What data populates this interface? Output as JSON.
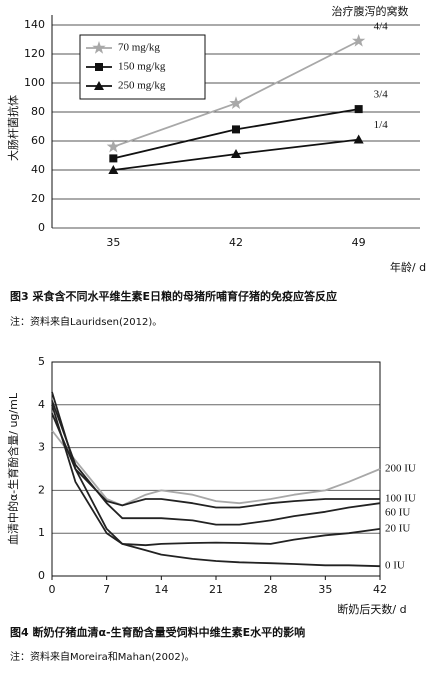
{
  "chart_data": [
    {
      "type": "line",
      "annotation": "治疗腹泻的窝数",
      "y_label": "大肠杆菌抗体",
      "x_label": "年龄/ d",
      "caption": "图3 采食含不同水平维生素E日粮的母猪所哺育仔猪的免疫应答反应",
      "note": "注：资料来自Lauridsen(2012)。",
      "categories": [
        "35",
        "42",
        "49"
      ],
      "series": [
        {
          "name": "70 mg/kg",
          "color": "#a8a8a8",
          "marker": "star",
          "values": [
            56,
            86,
            129
          ],
          "end_label": "4/4"
        },
        {
          "name": "150 mg/kg",
          "color": "#111111",
          "marker": "square",
          "values": [
            48,
            68,
            82
          ],
          "end_label": "3/4"
        },
        {
          "name": "250 mg/kg",
          "color": "#111111",
          "marker": "triangle",
          "values": [
            40,
            51,
            61
          ],
          "end_label": "1/4"
        }
      ],
      "ylim": [
        0,
        140
      ],
      "yticks": [
        0,
        20,
        40,
        60,
        80,
        100,
        120,
        140
      ],
      "grid": true,
      "legend": "upper left"
    },
    {
      "type": "line",
      "y_label": "血清中的α-生育酚含量/ ug/mL",
      "x_label": "断奶后天数/ d",
      "caption": "图4 断奶仔猪血清α-生育酚含量受饲料中维生素E水平的影响",
      "note": "注：资料来自Moreira和Mahan(2002)。",
      "x": [
        0,
        3,
        7,
        9,
        12,
        14,
        18,
        21,
        24,
        28,
        31,
        35,
        38,
        42
      ],
      "series": [
        {
          "name": "200 IU",
          "color": "#a8a8a8",
          "values": [
            3.4,
            2.7,
            1.8,
            1.65,
            1.9,
            2.0,
            1.9,
            1.75,
            1.7,
            1.8,
            1.9,
            2.0,
            2.2,
            2.5
          ]
        },
        {
          "name": "100 IU",
          "color": "#222222",
          "values": [
            3.8,
            2.5,
            1.75,
            1.65,
            1.8,
            1.8,
            1.7,
            1.6,
            1.6,
            1.7,
            1.75,
            1.8,
            1.8,
            1.8
          ]
        },
        {
          "name": "60 IU",
          "color": "#222222",
          "values": [
            4.1,
            2.6,
            1.7,
            1.35,
            1.35,
            1.35,
            1.3,
            1.2,
            1.2,
            1.3,
            1.4,
            1.5,
            1.6,
            1.7
          ]
        },
        {
          "name": "20 IU",
          "color": "#222222",
          "values": [
            4.3,
            2.5,
            1.1,
            0.75,
            0.72,
            0.75,
            0.77,
            0.78,
            0.77,
            0.75,
            0.85,
            0.95,
            1.0,
            1.1
          ]
        },
        {
          "name": "0 IU",
          "color": "#222222",
          "values": [
            4.0,
            2.2,
            1.0,
            0.75,
            0.6,
            0.5,
            0.4,
            0.35,
            0.32,
            0.3,
            0.28,
            0.25,
            0.25,
            0.23
          ]
        }
      ],
      "xlim": [
        0,
        42
      ],
      "xticks": [
        0,
        7,
        14,
        21,
        28,
        35,
        42
      ],
      "ylim": [
        0,
        5
      ],
      "yticks": [
        0,
        1,
        2,
        3,
        4,
        5
      ],
      "grid": true
    }
  ]
}
